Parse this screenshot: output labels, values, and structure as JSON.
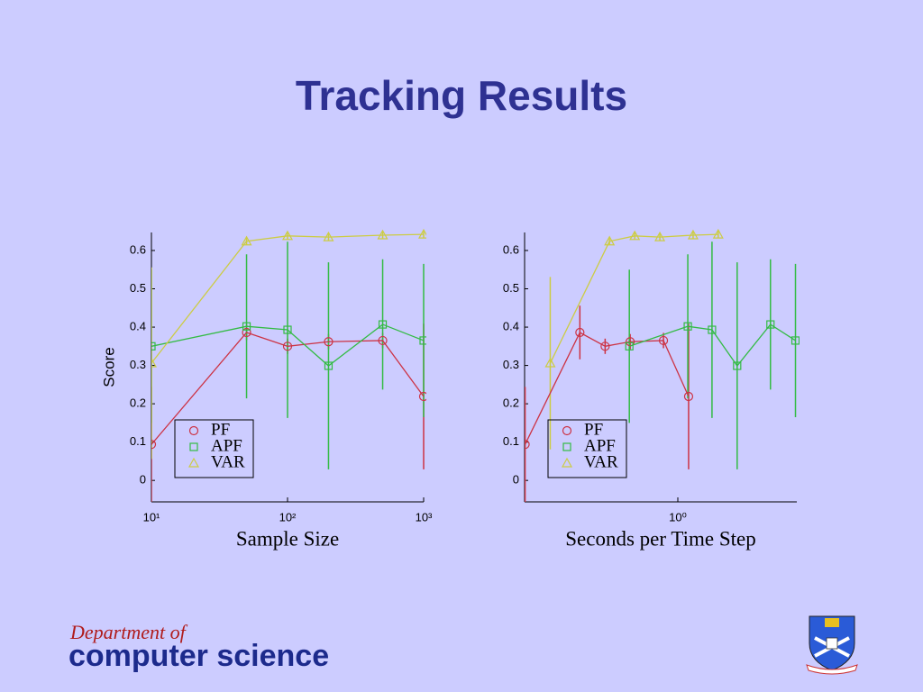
{
  "slide": {
    "title": "Tracking Results"
  },
  "footer": {
    "line1": "Department of",
    "line2": "computer science"
  },
  "chart_data": [
    {
      "type": "line",
      "xlabel": "Sample Size",
      "ylabel": "Score",
      "xscale": "log",
      "xlim": [
        10,
        1000
      ],
      "ylim": [
        -0.056,
        0.647
      ],
      "xticks": [
        {
          "value": 10,
          "label": "10¹"
        },
        {
          "value": 100,
          "label": "10²"
        },
        {
          "value": 1000,
          "label": "10³"
        }
      ],
      "yticks": [
        0,
        0.1,
        0.2,
        0.3,
        0.4,
        0.5,
        0.6
      ],
      "legend": "lower left",
      "series": [
        {
          "name": "PF",
          "color": "#cc3344",
          "marker": "circle",
          "x": [
            10,
            50,
            100,
            200,
            500,
            1000
          ],
          "values": [
            0.094,
            0.386,
            0.35,
            0.362,
            0.365,
            0.219
          ],
          "errors": [
            0.15,
            0.02,
            0.02,
            0.02,
            0.02,
            0.19
          ]
        },
        {
          "name": "APF",
          "color": "#33bb44",
          "marker": "square",
          "x": [
            10,
            50,
            100,
            200,
            500,
            1000
          ],
          "values": [
            0.35,
            0.402,
            0.393,
            0.299,
            0.407,
            0.365
          ],
          "errors": [
            0.2,
            0.188,
            0.23,
            0.27,
            0.17,
            0.2
          ]
        },
        {
          "name": "VAR",
          "color": "#cccc44",
          "marker": "triangle",
          "x": [
            10,
            50,
            100,
            200,
            500,
            1000
          ],
          "values": [
            0.306,
            0.624,
            0.638,
            0.635,
            0.64,
            0.642
          ],
          "errors": [
            0.25,
            0.01,
            0.01,
            0.01,
            0.01,
            0.01
          ]
        }
      ]
    },
    {
      "type": "line",
      "xlabel": "Seconds per Time Step",
      "xscale": "log",
      "xlim": [
        0.014,
        27.5
      ],
      "ylim": [
        -0.056,
        0.647
      ],
      "xticks": [
        {
          "value": 1,
          "label": "10⁰"
        }
      ],
      "yticks": [
        0,
        0.1,
        0.2,
        0.3,
        0.4,
        0.5,
        0.6
      ],
      "legend": "lower left",
      "series": [
        {
          "name": "PF",
          "color": "#cc3344",
          "marker": "circle",
          "x": [
            0.0142,
            0.0653,
            0.132,
            0.265,
            0.67,
            1.35
          ],
          "values": [
            0.094,
            0.386,
            0.35,
            0.362,
            0.365,
            0.219
          ],
          "errors": [
            0.15,
            0.07,
            0.02,
            0.02,
            0.02,
            0.19
          ]
        },
        {
          "name": "APF",
          "color": "#33bb44",
          "marker": "square",
          "x": [
            0.259,
            1.32,
            2.59,
            5.22,
            13.2,
            26.5
          ],
          "values": [
            0.35,
            0.402,
            0.393,
            0.299,
            0.407,
            0.365
          ],
          "errors": [
            0.2,
            0.188,
            0.23,
            0.27,
            0.17,
            0.2
          ]
        },
        {
          "name": "VAR",
          "color": "#cccc44",
          "marker": "triangle",
          "x": [
            0.0286,
            0.149,
            0.301,
            0.606,
            1.53,
            3.08
          ],
          "values": [
            0.306,
            0.624,
            0.638,
            0.635,
            0.64,
            0.642
          ],
          "errors": [
            0.225,
            0.01,
            0.01,
            0.01,
            0.01,
            0.01
          ]
        }
      ]
    }
  ]
}
